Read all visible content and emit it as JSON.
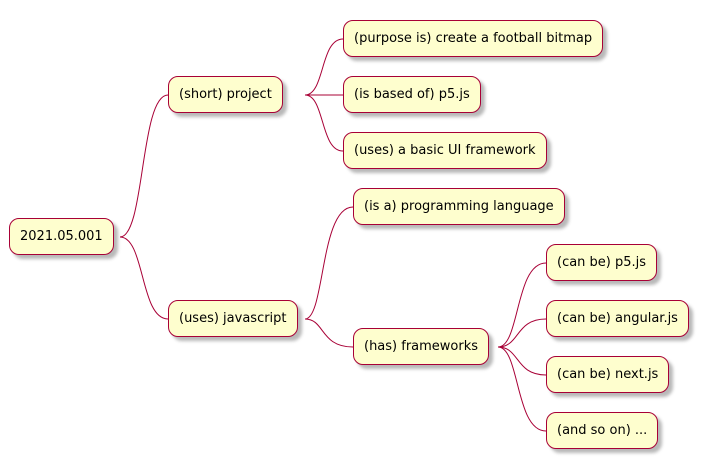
{
  "mindmap": {
    "root": "2021.05.001",
    "project": {
      "label": "(short) project",
      "children": [
        "(purpose is) create a football bitmap",
        "(is based of) p5.js",
        "(uses) a basic UI framework"
      ]
    },
    "javascript": {
      "label": "(uses) javascript",
      "language": "(is a) programming language",
      "frameworks": {
        "label": "(has) frameworks",
        "children": [
          "(can be) p5.js",
          "(can be) angular.js",
          "(can be) next.js",
          "(and so on) ..."
        ]
      }
    }
  }
}
